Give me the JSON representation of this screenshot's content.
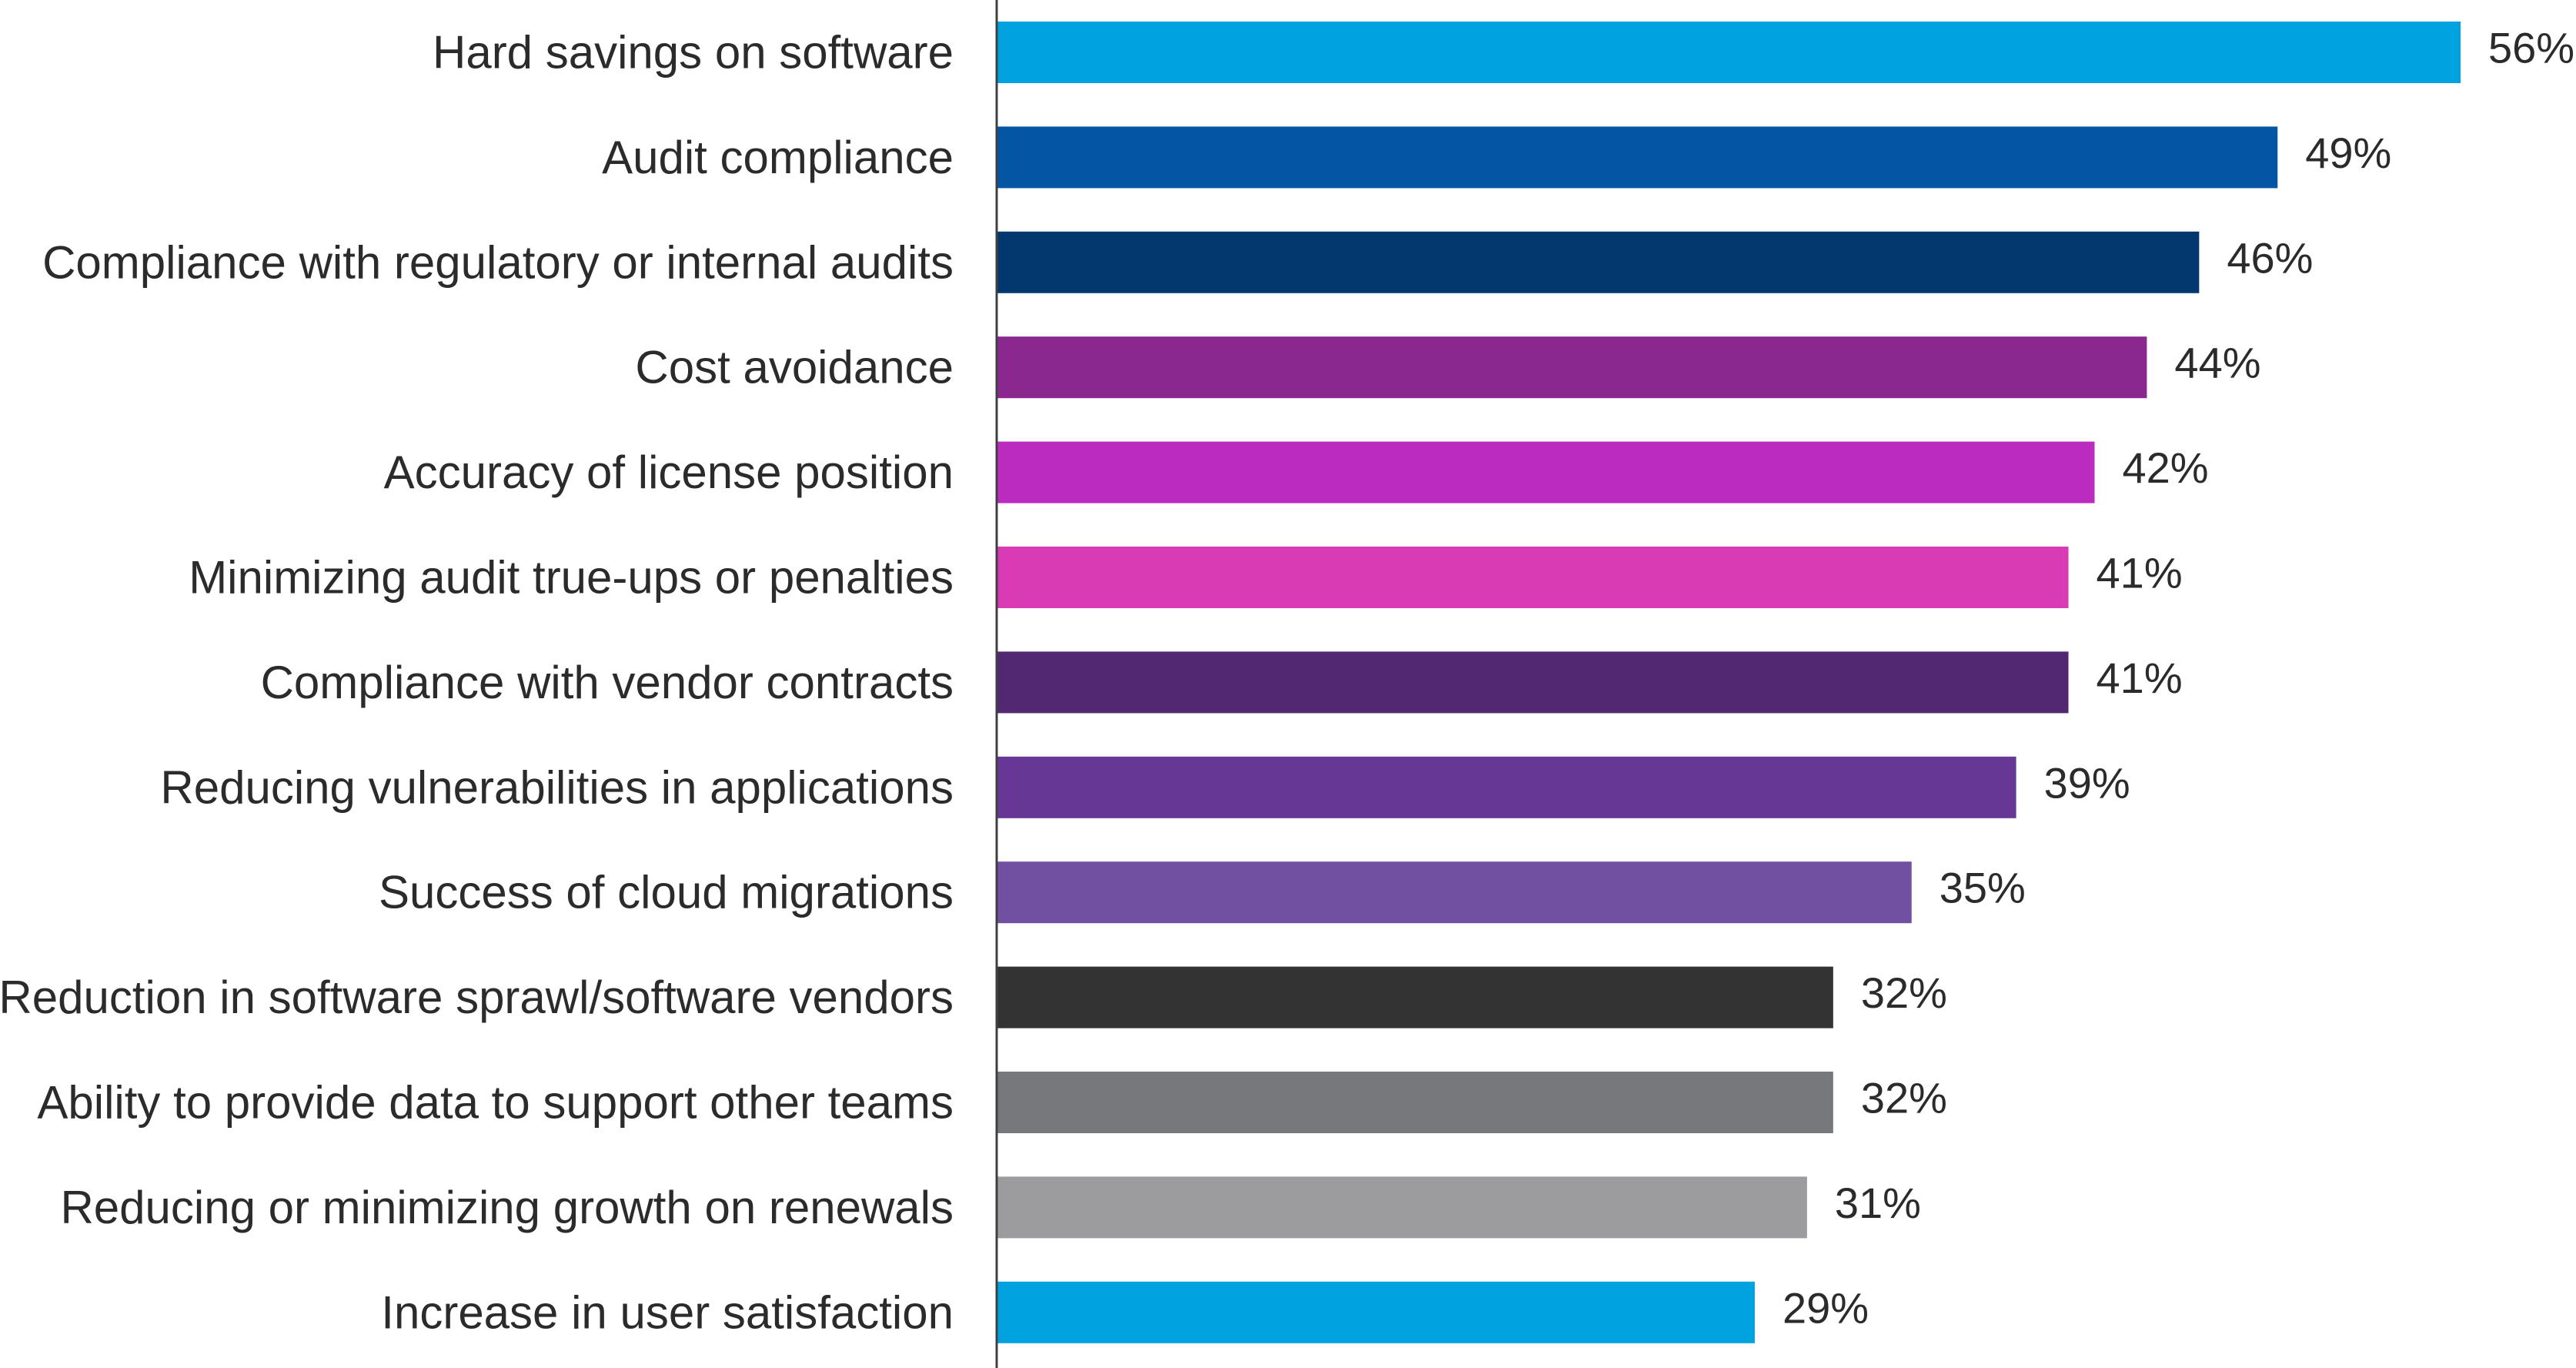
{
  "chart_data": {
    "type": "bar",
    "orientation": "horizontal",
    "title": "",
    "xlabel": "",
    "ylabel": "",
    "xlim": [
      0,
      56
    ],
    "value_suffix": "%",
    "grid": false,
    "legend": "none",
    "categories": [
      "Hard savings on software",
      "Audit compliance",
      "Compliance with regulatory or internal audits",
      "Cost avoidance",
      "Accuracy of license position",
      "Minimizing audit true-ups or penalties",
      "Compliance with vendor contracts",
      "Reducing vulnerabilities in applications",
      "Success of cloud migrations",
      "Reduction in software sprawl/software vendors",
      "Ability to provide data to support other teams",
      "Reducing or minimizing growth on renewals",
      "Increase in user satisfaction"
    ],
    "values": [
      56,
      49,
      46,
      44,
      42,
      41,
      41,
      39,
      35,
      32,
      32,
      31,
      29
    ],
    "value_labels": [
      "56%",
      "49%",
      "46%",
      "44%",
      "42%",
      "41%",
      "41%",
      "39%",
      "35%",
      "32%",
      "32%",
      "31%",
      "29%"
    ],
    "colors": [
      "#00a3e0",
      "#0455a4",
      "#03386e",
      "#8b288f",
      "#bc2bc0",
      "#d83bb3",
      "#532873",
      "#663795",
      "#7150a1",
      "#333333",
      "#77787b",
      "#9c9c9e",
      "#00a3e0"
    ],
    "axis_color": "#404040"
  }
}
